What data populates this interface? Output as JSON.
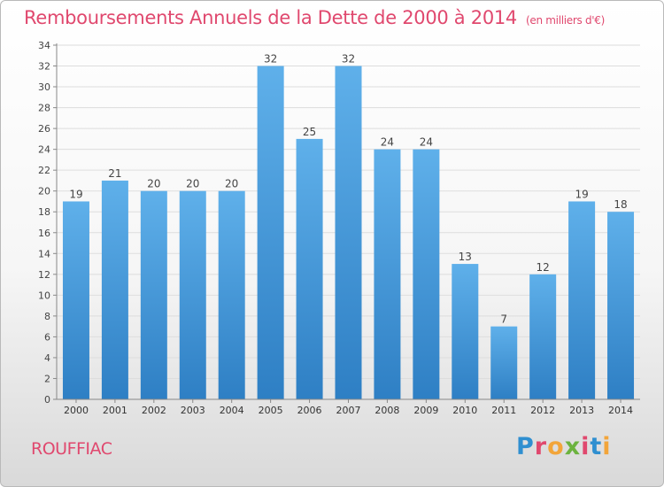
{
  "title": "Remboursements Annuels de la Dette de 2000 à 2014",
  "unit": "(en milliers d'€)",
  "commune": "ROUFFIAC",
  "logo": {
    "text": "Proxiti",
    "colors": [
      "#2f8fd0",
      "#e0486e",
      "#f2a53a",
      "#6cb33f",
      "#e0486e",
      "#2f8fd0",
      "#f2a53a"
    ]
  },
  "colors": {
    "title": "#e0486e",
    "bar_top": "#5fb0ea",
    "bar_bottom": "#2e7fc4",
    "axis": "#888888",
    "grid": "#dddddd"
  },
  "chart_data": {
    "type": "bar",
    "categories": [
      "2000",
      "2001",
      "2002",
      "2003",
      "2004",
      "2005",
      "2006",
      "2007",
      "2008",
      "2009",
      "2010",
      "2011",
      "2012",
      "2013",
      "2014"
    ],
    "values": [
      19,
      21,
      20,
      20,
      20,
      32,
      25,
      32,
      24,
      24,
      13,
      7,
      12,
      19,
      18
    ],
    "ylim": [
      0,
      34
    ],
    "yticks": [
      0,
      2,
      4,
      6,
      8,
      10,
      12,
      14,
      16,
      18,
      20,
      22,
      24,
      26,
      28,
      30,
      32,
      34
    ],
    "data_labels": true,
    "grid": true,
    "legend": "none"
  }
}
